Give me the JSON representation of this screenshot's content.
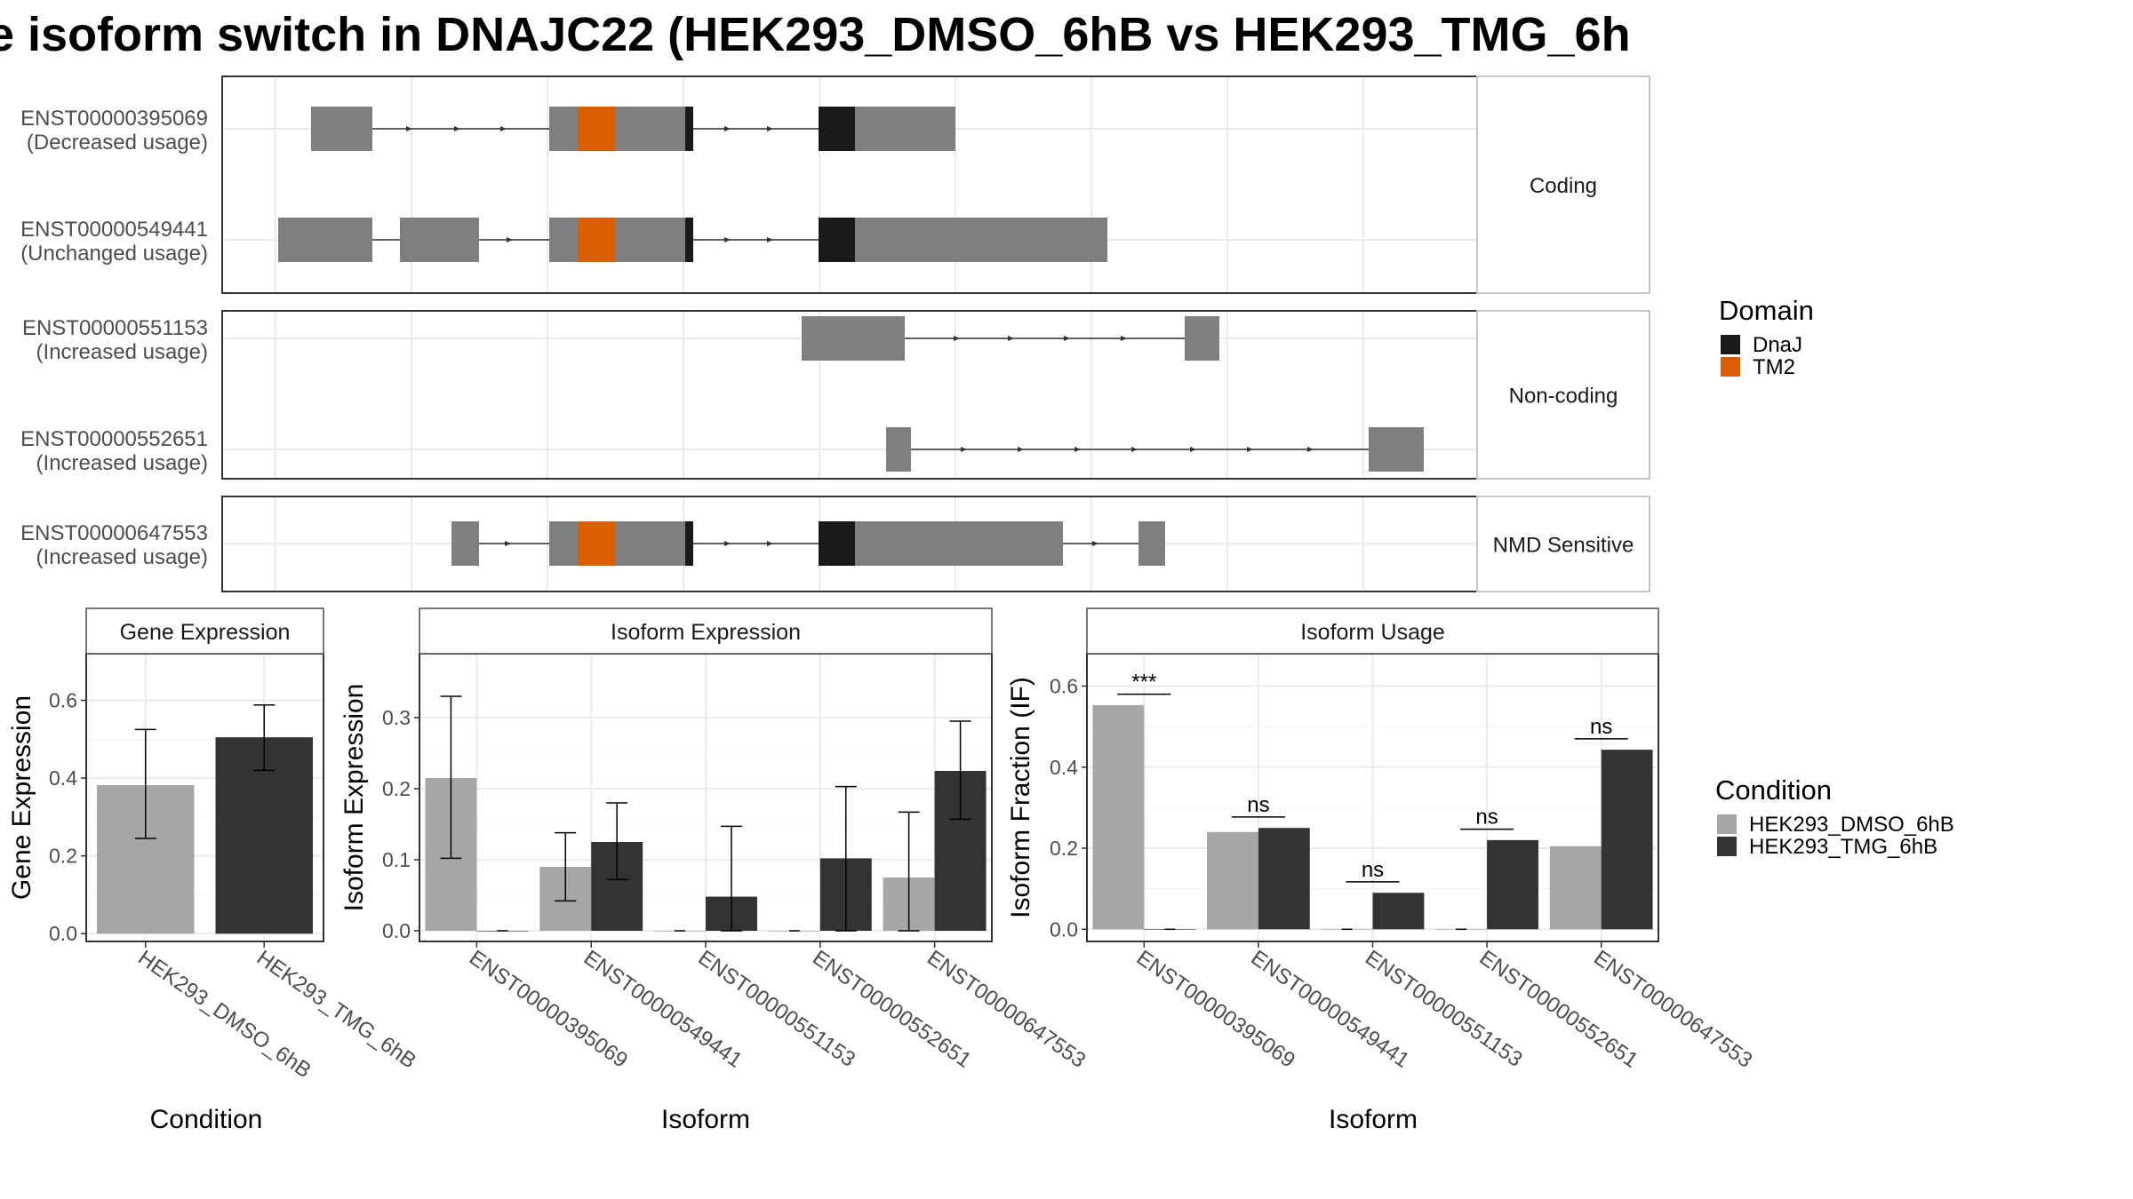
{
  "title": "e isoform switch in DNAJC22 (HEK293_DMSO_6hB vs HEK293_TMG_6h",
  "colors": {
    "exon": "#7f7f7f",
    "dnaj": "#1a1a1a",
    "tm2": "#d95f02",
    "dmso": "#a6a6a6",
    "tmg": "#333333",
    "panel_border": "#333333",
    "strip_fill": "#ffffff",
    "grid": "#ebebeb",
    "intron": "#333333"
  },
  "transcripts": {
    "panels": [
      {
        "label": "Coding",
        "tracks": [
          {
            "id": "ENST00000395069",
            "usage": "(Decreased usage)"
          },
          {
            "id": "ENST00000549441",
            "usage": "(Unchanged usage)"
          }
        ]
      },
      {
        "label": "Non-coding",
        "tracks": [
          {
            "id": "ENST00000551153",
            "usage": "(Increased usage)"
          },
          {
            "id": "ENST00000552651",
            "usage": "(Increased usage)"
          }
        ]
      },
      {
        "label": "NMD Sensitive",
        "tracks": [
          {
            "id": "ENST00000647553",
            "usage": "(Increased usage)"
          }
        ]
      }
    ]
  },
  "domain_legend": {
    "title": "Domain",
    "items": [
      {
        "label": "DnaJ",
        "color": "#1a1a1a"
      },
      {
        "label": "TM2",
        "color": "#d95f02"
      }
    ]
  },
  "condition_legend": {
    "title": "Condition",
    "items": [
      {
        "label": "HEK293_DMSO_6hB",
        "color": "#a6a6a6"
      },
      {
        "label": "HEK293_TMG_6hB",
        "color": "#333333"
      }
    ]
  },
  "chart_data": [
    {
      "type": "bar",
      "title": "Gene Expression",
      "xlabel": "Condition",
      "ylabel": "Gene Expression",
      "ylim": [
        -0.02,
        0.72
      ],
      "yticks": [
        0.0,
        0.2,
        0.4,
        0.6
      ],
      "ytick_labels": [
        "0.0",
        "0.2",
        "0.4",
        "0.6"
      ],
      "categories": [
        "HEK293_DMSO_6hB",
        "HEK293_TMG_6hB"
      ],
      "values": [
        0.382,
        0.505
      ],
      "error_low": [
        0.245,
        0.42
      ],
      "error_high": [
        0.525,
        0.588
      ],
      "grid": true
    },
    {
      "type": "bar",
      "title": "Isoform Expression",
      "xlabel": "Isoform",
      "ylabel": "Isoform Expression",
      "ylim": [
        -0.015,
        0.39
      ],
      "yticks": [
        0.0,
        0.1,
        0.2,
        0.3
      ],
      "ytick_labels": [
        "0.0",
        "0.1",
        "0.2",
        "0.3"
      ],
      "categories": [
        "ENST00000395069",
        "ENST00000549441",
        "ENST00000551153",
        "ENST00000552651",
        "ENST00000647553"
      ],
      "series": [
        {
          "name": "HEK293_DMSO_6hB",
          "values": [
            0.215,
            0.09,
            0.0,
            0.0,
            0.075
          ],
          "error_low": [
            0.102,
            0.042,
            null,
            null,
            0.0
          ],
          "error_high": [
            0.33,
            0.138,
            null,
            null,
            0.167
          ]
        },
        {
          "name": "HEK293_TMG_6hB",
          "values": [
            0.0,
            0.125,
            0.048,
            0.102,
            0.225
          ],
          "error_low": [
            null,
            0.072,
            0.0,
            0.0,
            0.157
          ],
          "error_high": [
            null,
            0.18,
            0.147,
            0.203,
            0.295
          ]
        }
      ],
      "grid": true
    },
    {
      "type": "bar",
      "title": "Isoform Usage",
      "xlabel": "Isoform",
      "ylabel": "Isoform Fraction (IF)",
      "ylim": [
        -0.03,
        0.68
      ],
      "yticks": [
        0.0,
        0.2,
        0.4,
        0.6
      ],
      "ytick_labels": [
        "0.0",
        "0.2",
        "0.4",
        "0.6"
      ],
      "categories": [
        "ENST00000395069",
        "ENST00000549441",
        "ENST00000551153",
        "ENST00000552651",
        "ENST00000647553"
      ],
      "series": [
        {
          "name": "HEK293_DMSO_6hB",
          "values": [
            0.553,
            0.24,
            0.0,
            0.0,
            0.205
          ]
        },
        {
          "name": "HEK293_TMG_6hB",
          "values": [
            0.0,
            0.25,
            0.09,
            0.22,
            0.443
          ]
        }
      ],
      "significance": [
        "***",
        "ns",
        "ns",
        "ns",
        "ns"
      ],
      "significance_y": [
        0.58,
        0.277,
        0.117,
        0.247,
        0.47
      ],
      "grid": true
    }
  ]
}
